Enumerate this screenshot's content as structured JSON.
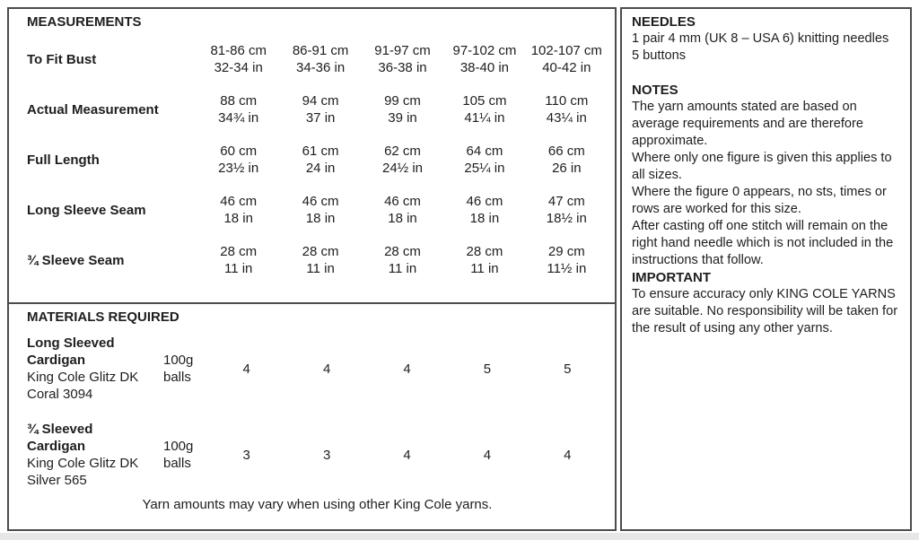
{
  "left_panel": {
    "measurements": {
      "title": "MEASUREMENTS",
      "rows": [
        {
          "label": "To Fit Bust",
          "cm": [
            "81-86 cm",
            "86-91 cm",
            "91-97 cm",
            "97-102 cm",
            "102-107 cm"
          ],
          "in": [
            "32-34 in",
            "34-36 in",
            "36-38 in",
            "38-40 in",
            "40-42 in"
          ]
        },
        {
          "label": "Actual Measurement",
          "cm": [
            "88 cm",
            "94 cm",
            "99 cm",
            "105 cm",
            "110 cm"
          ],
          "in": [
            "34¾ in",
            "37 in",
            "39 in",
            "41¼ in",
            "43¼ in"
          ]
        },
        {
          "label": "Full Length",
          "cm": [
            "60 cm",
            "61 cm",
            "62 cm",
            "64 cm",
            "66 cm"
          ],
          "in": [
            "23½ in",
            "24 in",
            "24½ in",
            "25¼ in",
            "26 in"
          ]
        },
        {
          "label": "Long Sleeve Seam",
          "cm": [
            "46 cm",
            "46 cm",
            "46 cm",
            "46 cm",
            "47 cm"
          ],
          "in": [
            "18 in",
            "18 in",
            "18 in",
            "18 in",
            "18½ in"
          ]
        },
        {
          "label": "¾ Sleeve Seam",
          "cm": [
            "28 cm",
            "28 cm",
            "28 cm",
            "28 cm",
            "29 cm"
          ],
          "in": [
            "11 in",
            "11 in",
            "11 in",
            "11 in",
            "11½ in"
          ]
        }
      ]
    },
    "materials": {
      "title": "MATERIALS REQUIRED",
      "items": [
        {
          "name_line1": "Long Sleeved",
          "name_line2": "Cardigan",
          "yarn": "King Cole Glitz DK",
          "shade": "Coral 3094",
          "unit_line1": "100g",
          "unit_line2": "balls",
          "quantities": [
            "4",
            "4",
            "4",
            "5",
            "5"
          ]
        },
        {
          "name_line1": "¾ Sleeved",
          "name_line2": "Cardigan",
          "yarn": "King Cole Glitz DK",
          "shade": "Silver 565",
          "unit_line1": "100g",
          "unit_line2": "balls",
          "quantities": [
            "3",
            "3",
            "4",
            "4",
            "4"
          ]
        }
      ],
      "footnote": "Yarn amounts may vary when using other King Cole yarns."
    }
  },
  "right_panel": {
    "needles": {
      "title": "NEEDLES",
      "lines": [
        "1 pair 4 mm (UK 8 – USA 6) knitting needles",
        "5 buttons"
      ]
    },
    "notes": {
      "title": "NOTES",
      "paragraphs": [
        "The yarn amounts stated are based on average requirements and are therefore approximate.",
        "Where only one figure is given this applies to all sizes.",
        "Where the figure 0 appears, no sts, times or rows are worked for this size.",
        "After casting off one stitch will remain on the right hand needle which is not included in the instructions that follow."
      ],
      "important_title": "IMPORTANT",
      "important_text": "To ensure accuracy only KING COLE YARNS are suitable. No responsibility will be taken for the result of using any other yarns."
    }
  }
}
